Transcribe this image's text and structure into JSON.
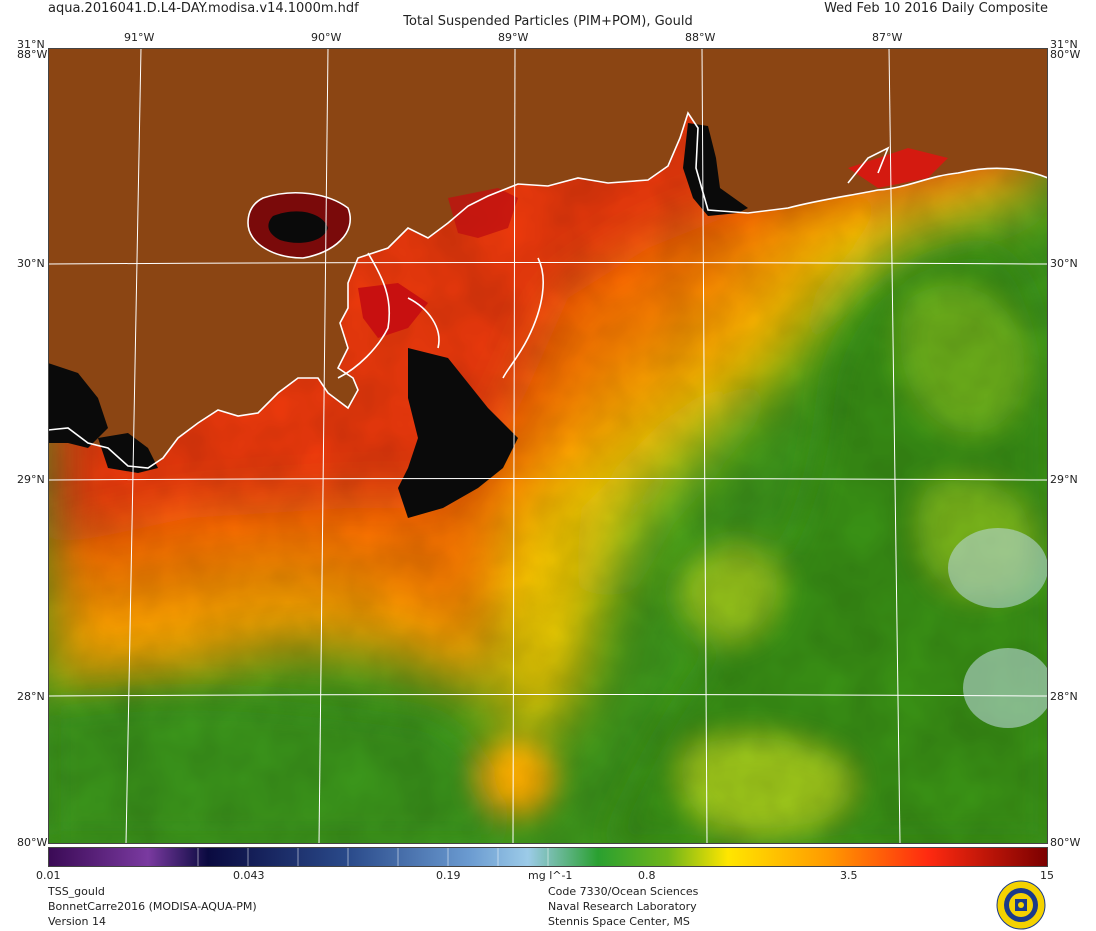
{
  "header": {
    "file_name": "aqua.2016041.D.L4-DAY.modisa.v14.1000m.hdf",
    "product_title": "Total Suspended Particles (PIM+POM), Gould",
    "date_label": "Wed Feb 10 2016 Daily Composite"
  },
  "map": {
    "lon_labels": [
      "91°W",
      "90°W",
      "89°W",
      "88°W",
      "87°W"
    ],
    "lat_labels": [
      "31°N",
      "30°N",
      "29°N",
      "28°N"
    ],
    "corner_top_left": "31°N",
    "corner_top_right": "31°N",
    "corner_bottom_left": "80°W",
    "corner_bottom_right": "80°W",
    "corner_top_left_sub": "88°W",
    "corner_top_right_sub": "80°W",
    "land_color": "#8B4513",
    "coastline_color": "#ffffff",
    "grid_color": "#ffffff"
  },
  "colorbar": {
    "unit": "mg l^-1",
    "tick_labels": [
      "0.01",
      "0.043",
      "0.19",
      "0.8",
      "3.5",
      "15"
    ],
    "scale": "log",
    "range": [
      0.01,
      15
    ]
  },
  "footer": {
    "left_line1": "TSS_gould",
    "left_line2": "BonnetCarre2016 (MODISA-AQUA-PM)",
    "left_line3": "Version 14",
    "right_line1": "Code 7330/Ocean Sciences",
    "right_line2": "Naval Research Laboratory",
    "right_line3": "Stennis Space Center, MS"
  },
  "logo": {
    "name": "naval-research-laboratory-seal"
  }
}
